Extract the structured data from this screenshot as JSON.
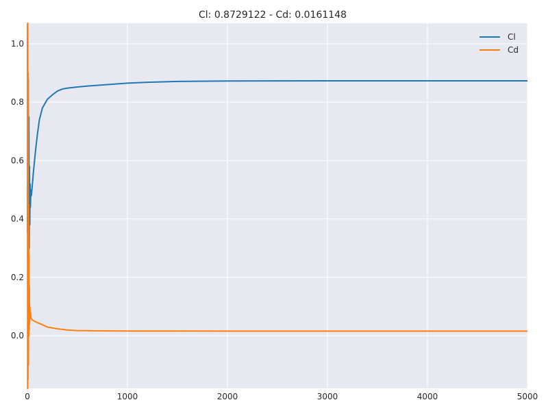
{
  "chart_data": {
    "type": "line",
    "title": "Cl: 0.8729122 - Cd: 0.0161148",
    "xlabel": "",
    "ylabel": "",
    "xlim": [
      0,
      5000
    ],
    "ylim": [
      -0.18,
      1.07
    ],
    "x_ticks": [
      "0",
      "1000",
      "2000",
      "3000",
      "4000",
      "5000"
    ],
    "y_ticks": [
      "0.0",
      "0.2",
      "0.4",
      "0.6",
      "0.8",
      "1.0"
    ],
    "grid": true,
    "legend_position": "top-right",
    "series": [
      {
        "name": "Cl",
        "color": "#1f77b4",
        "points": [
          [
            0,
            0.35
          ],
          [
            3,
            0.92
          ],
          [
            6,
            0.08
          ],
          [
            9,
            0.88
          ],
          [
            12,
            0.2
          ],
          [
            15,
            0.75
          ],
          [
            18,
            0.3
          ],
          [
            21,
            0.58
          ],
          [
            24,
            0.38
          ],
          [
            27,
            0.52
          ],
          [
            30,
            0.44
          ],
          [
            35,
            0.5
          ],
          [
            40,
            0.48
          ],
          [
            45,
            0.5
          ],
          [
            50,
            0.52
          ],
          [
            60,
            0.56
          ],
          [
            80,
            0.63
          ],
          [
            100,
            0.69
          ],
          [
            120,
            0.74
          ],
          [
            150,
            0.78
          ],
          [
            200,
            0.81
          ],
          [
            250,
            0.825
          ],
          [
            300,
            0.838
          ],
          [
            350,
            0.845
          ],
          [
            400,
            0.848
          ],
          [
            500,
            0.852
          ],
          [
            600,
            0.855
          ],
          [
            800,
            0.86
          ],
          [
            1000,
            0.865
          ],
          [
            1200,
            0.868
          ],
          [
            1500,
            0.871
          ],
          [
            2000,
            0.8725
          ],
          [
            3000,
            0.8729
          ],
          [
            4000,
            0.8729
          ],
          [
            5000,
            0.8729
          ]
        ]
      },
      {
        "name": "Cd",
        "color": "#ff7f0e",
        "points": [
          [
            0,
            1.07
          ],
          [
            2,
            -0.18
          ],
          [
            4,
            1.07
          ],
          [
            6,
            -0.15
          ],
          [
            8,
            0.9
          ],
          [
            10,
            -0.1
          ],
          [
            12,
            0.45
          ],
          [
            14,
            0.0
          ],
          [
            16,
            0.28
          ],
          [
            18,
            0.02
          ],
          [
            20,
            0.17
          ],
          [
            22,
            0.04
          ],
          [
            25,
            0.1
          ],
          [
            28,
            0.06
          ],
          [
            32,
            0.08
          ],
          [
            36,
            0.06
          ],
          [
            40,
            0.058
          ],
          [
            50,
            0.054
          ],
          [
            70,
            0.05
          ],
          [
            100,
            0.045
          ],
          [
            150,
            0.038
          ],
          [
            200,
            0.03
          ],
          [
            300,
            0.024
          ],
          [
            400,
            0.02
          ],
          [
            500,
            0.018
          ],
          [
            700,
            0.017
          ],
          [
            1000,
            0.0165
          ],
          [
            2000,
            0.0162
          ],
          [
            3000,
            0.0161
          ],
          [
            4000,
            0.0161
          ],
          [
            5000,
            0.0161
          ]
        ]
      }
    ]
  }
}
